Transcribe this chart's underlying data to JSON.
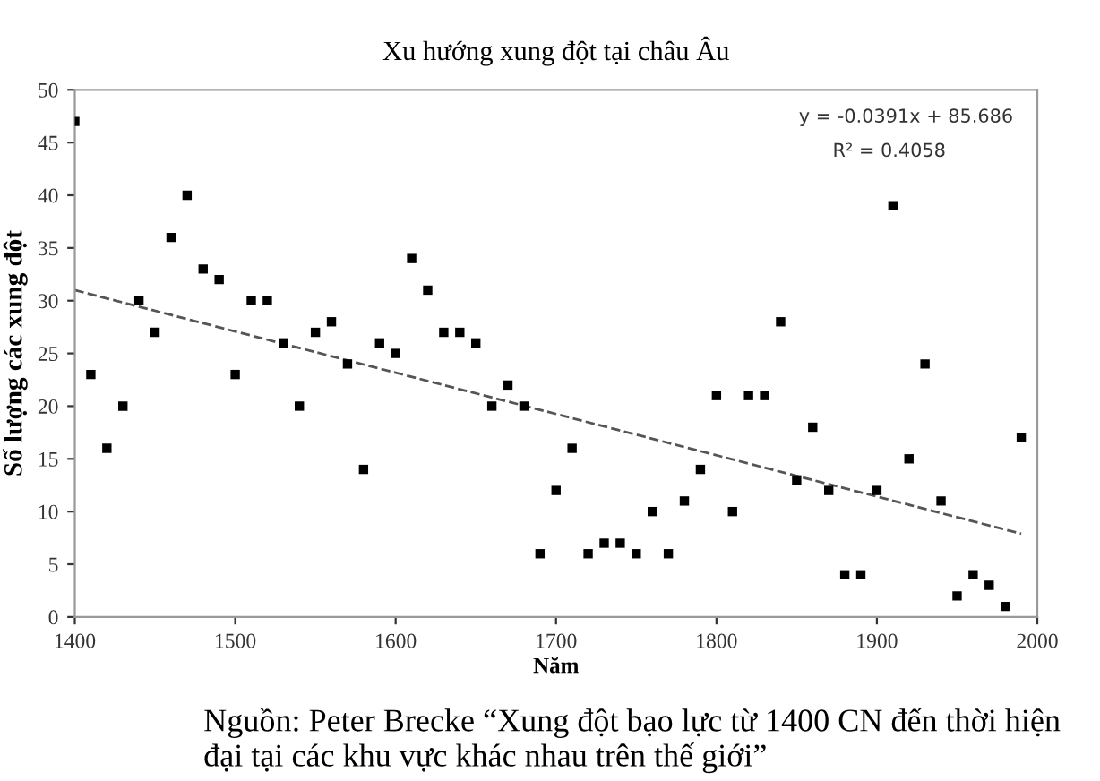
{
  "chart_data": {
    "type": "scatter",
    "title": "Xu hướng xung đột tại châu Âu",
    "xlabel": "Năm",
    "ylabel": "Số lượng các xung đột",
    "x": [
      1400,
      1410,
      1420,
      1430,
      1440,
      1450,
      1460,
      1470,
      1480,
      1490,
      1500,
      1510,
      1520,
      1530,
      1540,
      1550,
      1560,
      1570,
      1580,
      1590,
      1600,
      1610,
      1620,
      1630,
      1640,
      1650,
      1660,
      1670,
      1680,
      1690,
      1700,
      1710,
      1720,
      1730,
      1740,
      1750,
      1760,
      1770,
      1780,
      1790,
      1800,
      1810,
      1820,
      1830,
      1840,
      1850,
      1860,
      1870,
      1880,
      1890,
      1900,
      1910,
      1920,
      1930,
      1940,
      1950,
      1960,
      1970,
      1980,
      1990
    ],
    "series": [
      {
        "color": "#000000",
        "marker": "square",
        "values": [
          47,
          23,
          16,
          20,
          30,
          27,
          36,
          40,
          33,
          32,
          23,
          30,
          30,
          26,
          20,
          27,
          28,
          24,
          14,
          26,
          25,
          34,
          31,
          27,
          27,
          26,
          20,
          22,
          20,
          6,
          12,
          16,
          6,
          7,
          7,
          6,
          10,
          6,
          11,
          14,
          21,
          10,
          21,
          21,
          28,
          13,
          18,
          12,
          4,
          4,
          12,
          39,
          15,
          24,
          11,
          2,
          4,
          3,
          1,
          17
        ]
      },
      {
        "type": "line",
        "color": "#555555",
        "line_style": "dashed",
        "marker": "none",
        "x": [
          1400,
          1990
        ],
        "values": [
          31.0,
          7.9
        ]
      }
    ],
    "xlim": [
      1400,
      2000
    ],
    "xticks": [
      1400,
      1500,
      1600,
      1700,
      1800,
      1900,
      2000
    ],
    "ylim": [
      0,
      50
    ],
    "yticks": [
      0,
      5,
      10,
      15,
      20,
      25,
      30,
      35,
      40,
      45,
      50
    ],
    "grid": false,
    "legend": false,
    "annotations": [
      "y = -0.0391x + 85.686",
      "R² = 0.4058",
      "Nguồn: Peter Brecke “Xung đột bạo lực từ 1400 CN đến thời hiện đại tại các khu vực khác nhau trên thế giới”"
    ]
  }
}
